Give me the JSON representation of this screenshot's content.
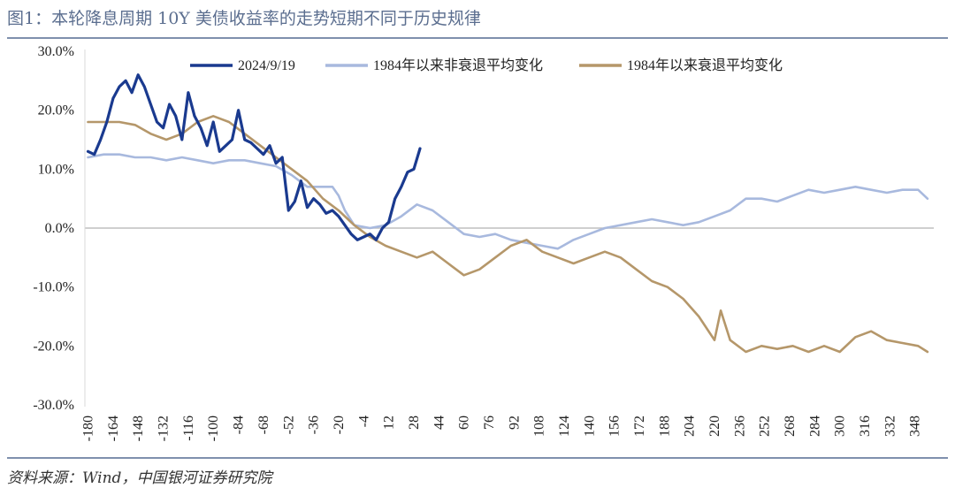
{
  "header": {
    "title": "图1：本轮降息周期 10Y 美债收益率的走势短期不同于历史规律"
  },
  "footer": {
    "source": "资料来源：Wind，中国银河证券研究院"
  },
  "colors": {
    "series_2024": "#1a3a8f",
    "series_nonrecession": "#a8b9de",
    "series_recession": "#b5976a",
    "title": "#5b6e8f",
    "rule": "#7f90ad"
  },
  "chart_data": {
    "type": "line",
    "title": "",
    "xlabel": "",
    "ylabel": "",
    "xlim": [
      -182,
      360
    ],
    "ylim": [
      -30,
      30
    ],
    "grid": false,
    "legend_position": "top",
    "y_ticks": [
      "30.0%",
      "20.0%",
      "10.0%",
      "0.0%",
      "-10.0%",
      "-20.0%",
      "-30.0%"
    ],
    "x_ticks": [
      "-180",
      "-164",
      "-148",
      "-132",
      "-116",
      "-100",
      "-84",
      "-68",
      "-52",
      "-36",
      "-20",
      "-4",
      "12",
      "28",
      "44",
      "60",
      "76",
      "92",
      "108",
      "124",
      "140",
      "156",
      "172",
      "188",
      "204",
      "220",
      "236",
      "252",
      "268",
      "284",
      "300",
      "316",
      "332",
      "348"
    ],
    "series": [
      {
        "name": "2024/9/19",
        "x": [
          -180,
          -176,
          -172,
          -168,
          -164,
          -160,
          -156,
          -152,
          -148,
          -144,
          -140,
          -136,
          -132,
          -128,
          -124,
          -120,
          -116,
          -112,
          -108,
          -104,
          -100,
          -96,
          -92,
          -88,
          -84,
          -80,
          -76,
          -72,
          -68,
          -64,
          -60,
          -56,
          -52,
          -48,
          -44,
          -40,
          -36,
          -32,
          -28,
          -24,
          -20,
          -16,
          -12,
          -8,
          -4,
          0,
          4,
          8,
          12,
          16,
          20,
          24,
          28,
          32
        ],
        "y": [
          13.0,
          12.5,
          15.0,
          18.0,
          22.0,
          24.0,
          25.0,
          23.0,
          26.0,
          24.0,
          21.0,
          18.0,
          17.0,
          21.0,
          19.0,
          15.0,
          23.0,
          19.0,
          17.0,
          14.0,
          18.0,
          13.0,
          14.0,
          15.0,
          20.0,
          15.0,
          14.5,
          13.5,
          12.5,
          14.0,
          11.0,
          12.0,
          3.0,
          4.5,
          8.0,
          3.5,
          5.0,
          4.0,
          2.5,
          3.0,
          2.0,
          0.5,
          -1.0,
          -2.0,
          -1.5,
          -1.0,
          -2.0,
          0.0,
          1.0,
          5.0,
          7.0,
          9.5,
          10.0,
          13.5
        ]
      },
      {
        "name": "1984年以来非衰退平均变化",
        "x": [
          -180,
          -170,
          -160,
          -150,
          -140,
          -130,
          -120,
          -110,
          -100,
          -90,
          -80,
          -70,
          -60,
          -50,
          -40,
          -30,
          -24,
          -20,
          -16,
          -10,
          0,
          10,
          20,
          30,
          40,
          50,
          60,
          70,
          80,
          90,
          100,
          110,
          120,
          130,
          140,
          150,
          160,
          170,
          180,
          190,
          200,
          210,
          220,
          230,
          240,
          250,
          260,
          270,
          280,
          290,
          300,
          310,
          320,
          330,
          340,
          350,
          356
        ],
        "y": [
          12.0,
          12.5,
          12.5,
          12.0,
          12.0,
          11.5,
          12.0,
          11.5,
          11.0,
          11.5,
          11.5,
          11.0,
          10.5,
          9.0,
          7.0,
          7.0,
          7.0,
          5.5,
          3.0,
          0.5,
          0.0,
          0.5,
          2.0,
          4.0,
          3.0,
          1.0,
          -1.0,
          -1.5,
          -1.0,
          -2.0,
          -2.5,
          -3.0,
          -3.5,
          -2.0,
          -1.0,
          0.0,
          0.5,
          1.0,
          1.5,
          1.0,
          0.5,
          1.0,
          2.0,
          3.0,
          5.0,
          5.0,
          4.5,
          5.5,
          6.5,
          6.0,
          6.5,
          7.0,
          6.5,
          6.0,
          6.5,
          6.5,
          5.0
        ]
      },
      {
        "name": "1984年以来衰退平均变化",
        "x": [
          -180,
          -170,
          -160,
          -150,
          -140,
          -130,
          -120,
          -110,
          -100,
          -90,
          -80,
          -70,
          -60,
          -50,
          -40,
          -30,
          -20,
          -10,
          0,
          10,
          20,
          30,
          40,
          50,
          60,
          70,
          80,
          90,
          100,
          110,
          120,
          130,
          140,
          150,
          160,
          170,
          180,
          190,
          200,
          210,
          220,
          224,
          230,
          240,
          250,
          260,
          270,
          280,
          290,
          300,
          310,
          320,
          330,
          340,
          350,
          356
        ],
        "y": [
          18.0,
          18.0,
          18.0,
          17.5,
          16.0,
          15.0,
          16.0,
          18.0,
          19.0,
          18.0,
          16.0,
          14.0,
          12.0,
          10.0,
          8.0,
          5.0,
          3.0,
          0.5,
          -1.5,
          -3.0,
          -4.0,
          -5.0,
          -4.0,
          -6.0,
          -8.0,
          -7.0,
          -5.0,
          -3.0,
          -2.0,
          -4.0,
          -5.0,
          -6.0,
          -5.0,
          -4.0,
          -5.0,
          -7.0,
          -9.0,
          -10.0,
          -12.0,
          -15.0,
          -19.0,
          -14.0,
          -19.0,
          -21.0,
          -20.0,
          -20.5,
          -20.0,
          -21.0,
          -20.0,
          -21.0,
          -18.5,
          -17.5,
          -19.0,
          -19.5,
          -20.0,
          -21.0
        ]
      }
    ]
  }
}
